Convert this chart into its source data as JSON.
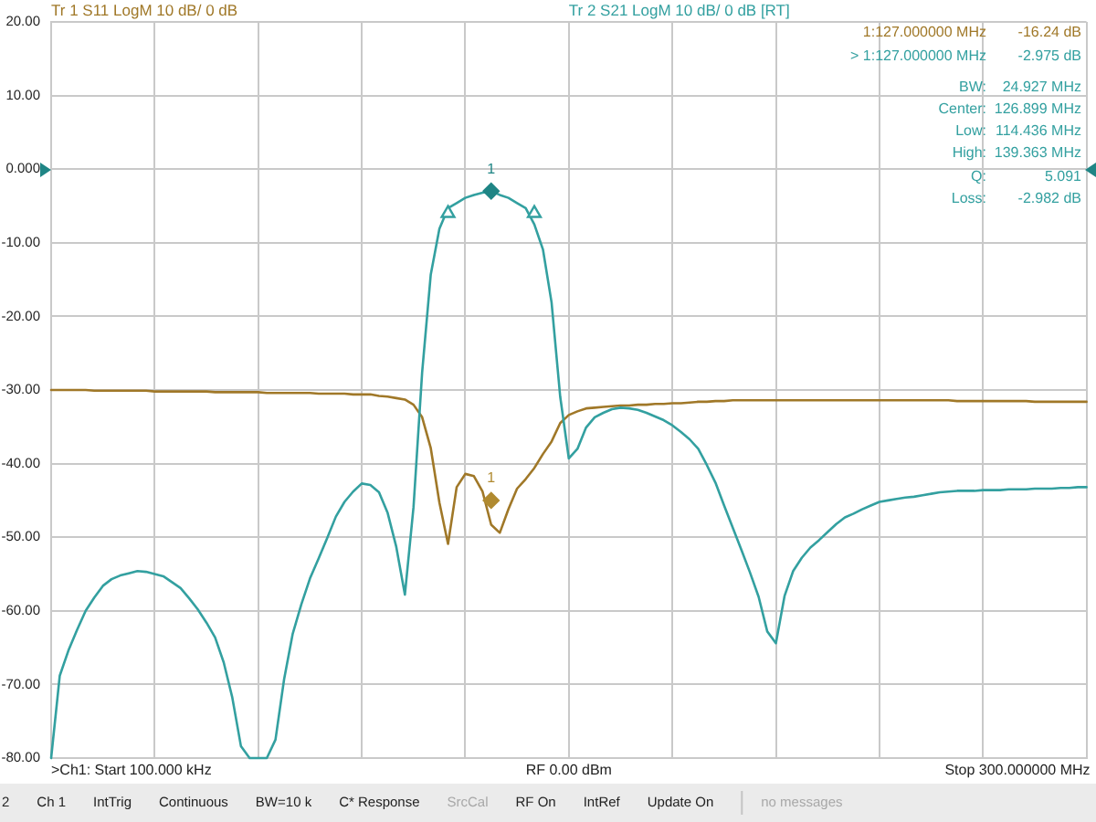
{
  "chart_data": {
    "type": "line",
    "categories": [
      null,
      null,
      null,
      null,
      null,
      null,
      null,
      null,
      null,
      null,
      null,
      null,
      null,
      null,
      null,
      null,
      null,
      null,
      null,
      null,
      null,
      null,
      null,
      null,
      null,
      null,
      null,
      null,
      null,
      null,
      null,
      null,
      null,
      null,
      null,
      null,
      null,
      null,
      null,
      null,
      null,
      null,
      null,
      null,
      null,
      null,
      null,
      null,
      null,
      null,
      null,
      null,
      null,
      null,
      null,
      null,
      null,
      null,
      null,
      null,
      null,
      null,
      null,
      null,
      null,
      null,
      null,
      null,
      null,
      null,
      null,
      null,
      null,
      null,
      null,
      null,
      null,
      null,
      null,
      null,
      null,
      null,
      null,
      null,
      null,
      null,
      null,
      null,
      null,
      null,
      null,
      null,
      null,
      null,
      null,
      null,
      null,
      null,
      null,
      null,
      null,
      null,
      null,
      null,
      null,
      null,
      null,
      null,
      null,
      null,
      null,
      null,
      null,
      null,
      null,
      null,
      null,
      null,
      null,
      null,
      null
    ],
    "series": [
      {
        "name": "Tr 1 S11 LogM 10 dB/ 0 dB",
        "color": "#a07828",
        "values": [
          -30.0,
          -30.0,
          -30.0,
          -30.0,
          -30.0,
          -30.1,
          -30.1,
          -30.1,
          -30.1,
          -30.1,
          -30.1,
          -30.1,
          -30.2,
          -30.2,
          -30.2,
          -30.2,
          -30.2,
          -30.2,
          -30.2,
          -30.3,
          -30.3,
          -30.3,
          -30.3,
          -30.3,
          -30.3,
          -30.4,
          -30.4,
          -30.4,
          -30.4,
          -30.4,
          -30.4,
          -30.5,
          -30.5,
          -30.5,
          -30.5,
          -30.6,
          -30.6,
          -30.6,
          -30.8,
          -30.9,
          -31.1,
          -31.3,
          -32.0,
          -33.7,
          -37.9,
          -45.3,
          -50.9,
          -43.2,
          -41.4,
          -41.7,
          -43.8,
          -48.3,
          -49.4,
          -46.2,
          -43.4,
          -42.1,
          -40.6,
          -38.7,
          -37.0,
          -34.5,
          -33.4,
          -32.9,
          -32.5,
          -32.4,
          -32.3,
          -32.2,
          -32.1,
          -32.1,
          -32.0,
          -32.0,
          -31.9,
          -31.9,
          -31.8,
          -31.8,
          -31.7,
          -31.6,
          -31.6,
          -31.5,
          -31.5,
          -31.4,
          -31.4,
          -31.4,
          -31.4,
          -31.4,
          -31.4,
          -31.4,
          -31.4,
          -31.4,
          -31.4,
          -31.4,
          -31.4,
          -31.4,
          -31.4,
          -31.4,
          -31.4,
          -31.4,
          -31.4,
          -31.4,
          -31.4,
          -31.4,
          -31.4,
          -31.4,
          -31.4,
          -31.4,
          -31.4,
          -31.5,
          -31.5,
          -31.5,
          -31.5,
          -31.5,
          -31.5,
          -31.5,
          -31.5,
          -31.5,
          -31.6,
          -31.6,
          -31.6,
          -31.6,
          -31.6,
          -31.6,
          -31.6
        ]
      },
      {
        "name": "Tr 2 S21 LogM 10 dB/ 0 dB [RT]",
        "color": "#33a0a0",
        "values": [
          -80,
          -68.8,
          -65.4,
          -62.6,
          -60.0,
          -58.2,
          -56.6,
          -55.7,
          -55.2,
          -54.9,
          -54.6,
          -54.7,
          -55.0,
          -55.3,
          -56.1,
          -56.9,
          -58.3,
          -59.8,
          -61.6,
          -63.6,
          -67.0,
          -71.8,
          -78.4,
          -80,
          -80,
          -80,
          -77.5,
          -69.3,
          -63.1,
          -59.1,
          -55.6,
          -52.9,
          -50.1,
          -47.2,
          -45.2,
          -43.8,
          -42.7,
          -42.9,
          -43.9,
          -46.7,
          -51.3,
          -57.8,
          -45.9,
          -27.6,
          -14.3,
          -8.1,
          -5.3,
          -4.6,
          -3.9,
          -3.5,
          -3.2,
          -3.0,
          -3.5,
          -3.9,
          -4.6,
          -5.3,
          -7.5,
          -10.9,
          -18.1,
          -30.9,
          -39.3,
          -38.0,
          -35.1,
          -33.7,
          -33.1,
          -32.6,
          -32.4,
          -32.5,
          -32.7,
          -33.1,
          -33.6,
          -34.1,
          -34.8,
          -35.7,
          -36.7,
          -38.0,
          -40.2,
          -42.6,
          -45.7,
          -48.7,
          -51.7,
          -54.8,
          -58.1,
          -62.8,
          -64.4,
          -58.0,
          -54.6,
          -52.8,
          -51.4,
          -50.4,
          -49.3,
          -48.2,
          -47.3,
          -46.8,
          -46.2,
          -45.7,
          -45.2,
          -45.0,
          -44.8,
          -44.6,
          -44.5,
          -44.3,
          -44.1,
          -43.9,
          -43.8,
          -43.7,
          -43.7,
          -43.7,
          -43.6,
          -43.6,
          -43.6,
          -43.5,
          -43.5,
          -43.5,
          -43.4,
          -43.4,
          -43.4,
          -43.3,
          -43.3,
          -43.2,
          -43.2
        ]
      },
      {
        "type": "scatter",
        "color": "#b08a30",
        "marker": "diamond",
        "values": [
          null,
          null,
          null,
          null,
          null,
          null,
          null,
          null,
          null,
          null,
          null,
          null,
          null,
          null,
          null,
          null,
          null,
          null,
          null,
          null,
          null,
          null,
          null,
          null,
          null,
          null,
          null,
          null,
          null,
          null,
          null,
          null,
          null,
          null,
          null,
          null,
          null,
          null,
          null,
          null,
          null,
          null,
          null,
          null,
          null,
          null,
          null,
          null,
          null,
          null,
          null,
          -45,
          null,
          null,
          null,
          null,
          null,
          null,
          null,
          null,
          null,
          null,
          null,
          null,
          null,
          null,
          null,
          null,
          null,
          null,
          null,
          null,
          null,
          null,
          null,
          null,
          null,
          null,
          null,
          null,
          null,
          null,
          null,
          null,
          null,
          null,
          null,
          null,
          null,
          null,
          null,
          null,
          null,
          null,
          null,
          null,
          null,
          null,
          null,
          null,
          null,
          null,
          null,
          null,
          null,
          null,
          null,
          null,
          null,
          null,
          null,
          null,
          null,
          null,
          null,
          null,
          null,
          null,
          null,
          null,
          null
        ]
      },
      {
        "type": "scatter",
        "color": "#1f8585",
        "marker": "diamond",
        "values": [
          null,
          null,
          null,
          null,
          null,
          null,
          null,
          null,
          null,
          null,
          null,
          null,
          null,
          null,
          null,
          null,
          null,
          null,
          null,
          null,
          null,
          null,
          null,
          null,
          null,
          null,
          null,
          null,
          null,
          null,
          null,
          null,
          null,
          null,
          null,
          null,
          null,
          null,
          null,
          null,
          null,
          null,
          null,
          null,
          null,
          null,
          null,
          null,
          null,
          null,
          null,
          -2.975,
          null,
          null,
          null,
          null,
          null,
          null,
          null,
          null,
          null,
          null,
          null,
          null,
          null,
          null,
          null,
          null,
          null,
          null,
          null,
          null,
          null,
          null,
          null,
          null,
          null,
          null,
          null,
          null,
          null,
          null,
          null,
          null,
          null,
          null,
          null,
          null,
          null,
          null,
          null,
          null,
          null,
          null,
          null,
          null,
          null,
          null,
          null,
          null,
          null,
          null,
          null,
          null,
          null,
          null,
          null,
          null,
          null,
          null,
          null,
          null,
          null,
          null,
          null,
          null,
          null,
          null,
          null,
          null,
          null
        ]
      },
      {
        "type": "scatter",
        "color": "#33a0a0",
        "marker": "triangle",
        "values": [
          null,
          null,
          null,
          null,
          null,
          null,
          null,
          null,
          null,
          null,
          null,
          null,
          null,
          null,
          null,
          null,
          null,
          null,
          null,
          null,
          null,
          null,
          null,
          null,
          null,
          null,
          null,
          null,
          null,
          null,
          null,
          null,
          null,
          null,
          null,
          null,
          null,
          null,
          null,
          null,
          null,
          null,
          null,
          null,
          null,
          null,
          -6.0,
          null,
          null,
          null,
          null,
          null,
          null,
          null,
          null,
          null,
          -6.0,
          null,
          null,
          null,
          null,
          null,
          null,
          null,
          null,
          null,
          null,
          null,
          null,
          null,
          null,
          null,
          null,
          null,
          null,
          null,
          null,
          null,
          null,
          null,
          null,
          null,
          null,
          null,
          null,
          null,
          null,
          null,
          null,
          null,
          null,
          null,
          null,
          null,
          null,
          null,
          null,
          null,
          null,
          null,
          null,
          null,
          null,
          null,
          null,
          null,
          null,
          null,
          null,
          null,
          null,
          null,
          null,
          null,
          null,
          null,
          null,
          null,
          null,
          null,
          null
        ]
      }
    ],
    "ylim": [
      -80,
      20
    ],
    "yticks": [
      {
        "value": -80,
        "label": "-80.00"
      },
      {
        "value": -70,
        "label": "-70.00"
      },
      {
        "value": -60,
        "label": "-60.00"
      },
      {
        "value": -50,
        "label": "-50.00"
      },
      {
        "value": -40,
        "label": "-40.00"
      },
      {
        "value": -30,
        "label": "-30.00"
      },
      {
        "value": -20,
        "label": "-20.00"
      },
      {
        "value": -10,
        "label": "-10.00"
      },
      {
        "value": 0,
        "label": "0.000"
      },
      {
        "value": 10,
        "label": "10.00"
      },
      {
        "value": 20,
        "label": "20.00"
      }
    ],
    "grid": true,
    "legend": "top",
    "annotations": [
      {
        "text": "1",
        "y": -2.975
      },
      {
        "text": "1",
        "y": -45
      },
      "1:127.000000 MHz",
      "-16.24 dB",
      "> 1:127.000000 MHz",
      "-2.975 dB",
      "BW:",
      "24.927 MHz",
      "Center:",
      "126.899 MHz",
      "Low:",
      "114.436 MHz",
      "High:",
      "139.363 MHz",
      "Q:",
      "5.091",
      "Loss:",
      "-2.982 dB",
      ">Ch1: Start 100.000 kHz",
      "RF 0.00 dBm",
      "Stop 300.000000 MHz",
      "2",
      "Ch 1",
      "IntTrig",
      "Continuous",
      "BW=10 k",
      "C* Response",
      "SrcCal",
      "RF On",
      "IntRef",
      "Update On",
      "no messages"
    ]
  }
}
